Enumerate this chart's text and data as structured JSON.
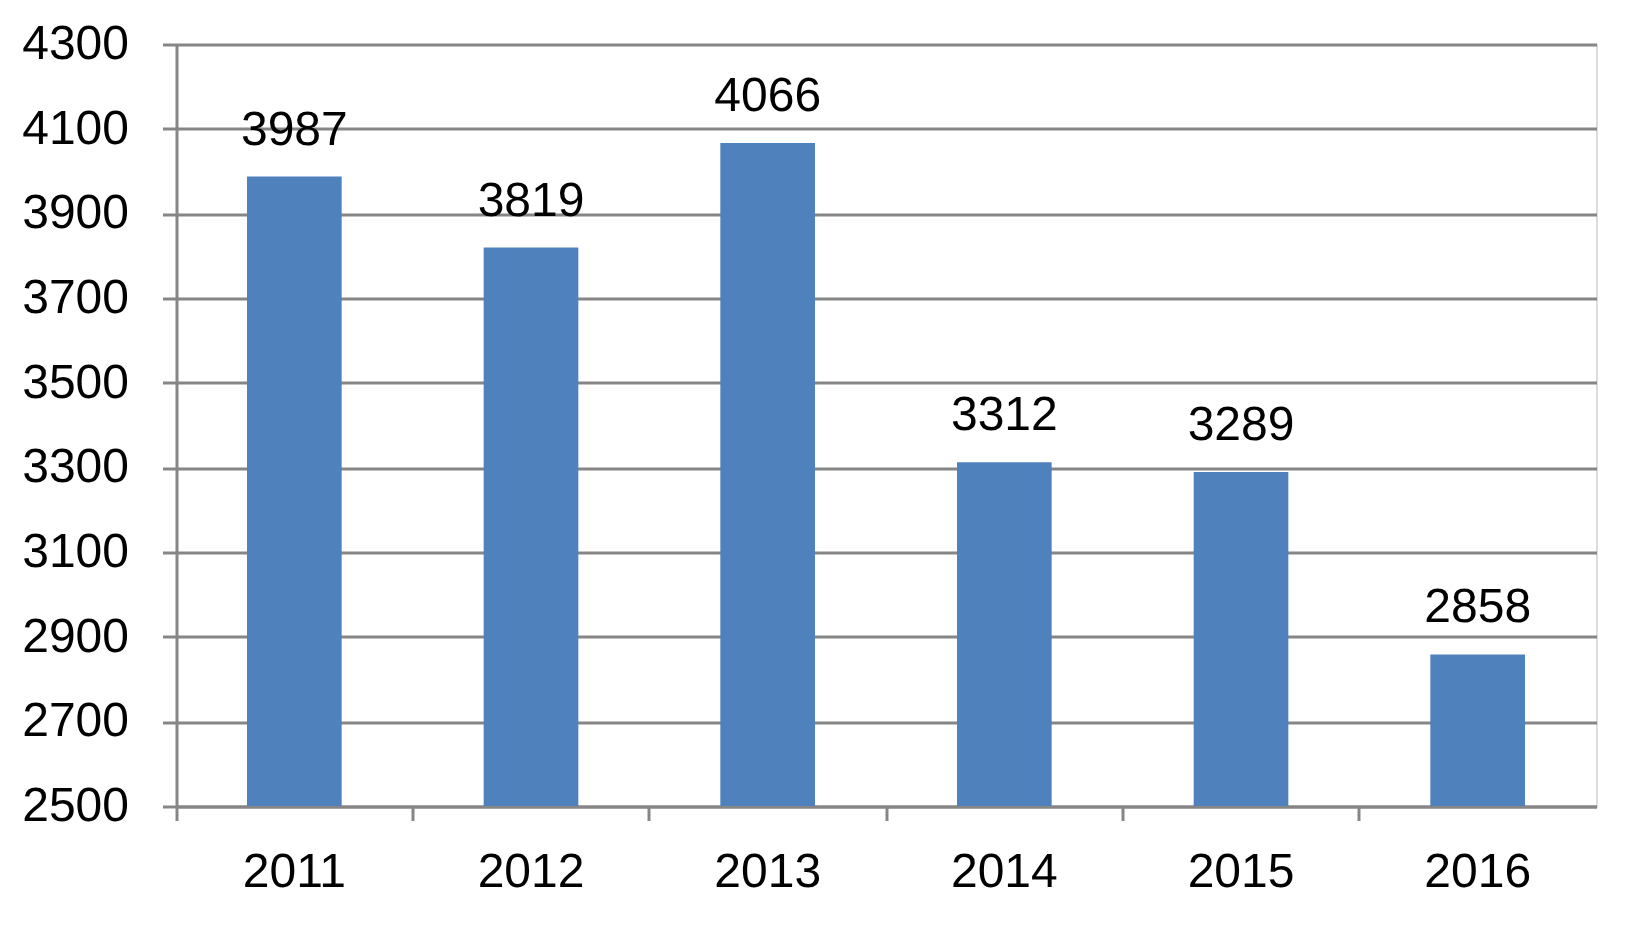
{
  "chart_data": {
    "type": "bar",
    "categories": [
      "2011",
      "2012",
      "2013",
      "2014",
      "2015",
      "2016"
    ],
    "values": [
      3987,
      3819,
      4066,
      3312,
      3289,
      2858
    ],
    "color": "#4f81bd",
    "ylim": [
      2500,
      4300
    ],
    "yticks": [
      2500,
      2700,
      2900,
      3100,
      3300,
      3500,
      3700,
      3900,
      4100,
      4300
    ],
    "grid": "y",
    "data_labels": true
  }
}
